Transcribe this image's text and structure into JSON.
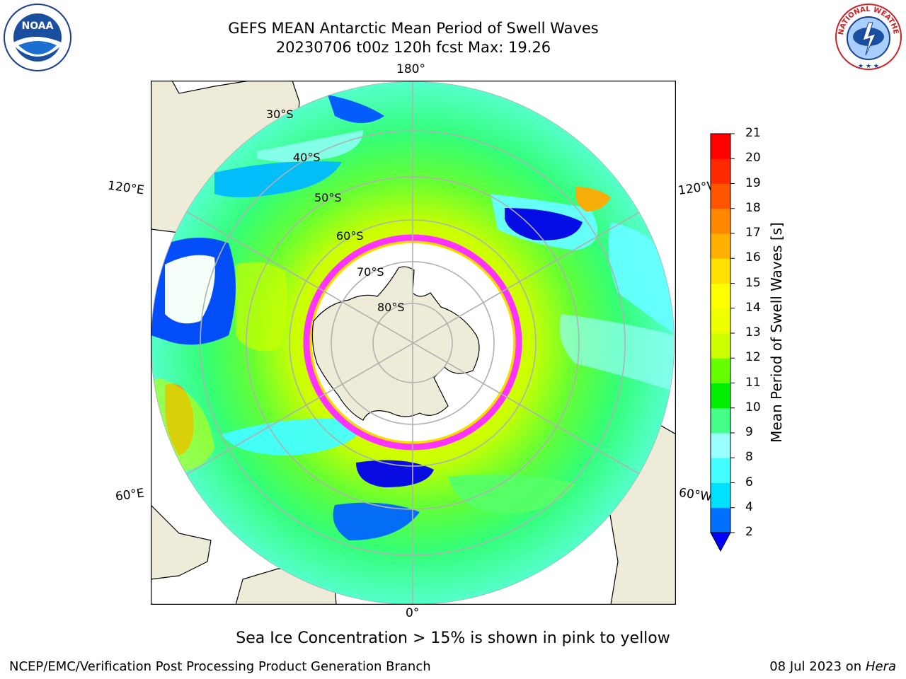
{
  "header": {
    "title_line1": "GEFS MEAN Antarctic Mean Period of Swell Waves",
    "title_line2": "20230706 t00z 120h fcst   Max: 19.26"
  },
  "logos": {
    "noaa_text": "NOAA",
    "nws_text": "NATIONAL WEATHER SERVICE"
  },
  "map": {
    "longitude_labels": {
      "top": "180°",
      "bottom": "0°",
      "upper_left": "120°E",
      "upper_right": "120°W",
      "lower_left": "60°E",
      "lower_right": "60°W"
    },
    "latitude_labels": [
      "30°S",
      "40°S",
      "50°S",
      "60°S",
      "70°S",
      "80°S"
    ],
    "colors": {
      "land": "#eeecd8",
      "ocean_base": "#66ff66",
      "sea_ice_low": "#ff33ff",
      "sea_ice_high": "#ffd700",
      "gridline": "#b0b0b0"
    }
  },
  "colorbar": {
    "label": "Mean Period of Swell Waves [s]",
    "ticks": [
      "2",
      "4",
      "6",
      "8",
      "9",
      "10",
      "11",
      "12",
      "13",
      "14",
      "15",
      "16",
      "17",
      "18",
      "19",
      "20",
      "21"
    ],
    "colors": [
      "#0070ff",
      "#00e0ff",
      "#44ffff",
      "#99ffff",
      "#44ff88",
      "#00ee00",
      "#66ff00",
      "#ccff00",
      "#eeff00",
      "#ffff00",
      "#ffe000",
      "#ffb000",
      "#ff8800",
      "#ff5500",
      "#ff2a00",
      "#ff0000"
    ],
    "under_color": "#0000ff"
  },
  "ice_note": "Sea Ice Concentration > 15% is shown in pink to yellow",
  "footer": {
    "left": "NCEP/EMC/Verification Post Processing Product Generation Branch",
    "date": "08 Jul 2023 on",
    "host": "Hera"
  }
}
